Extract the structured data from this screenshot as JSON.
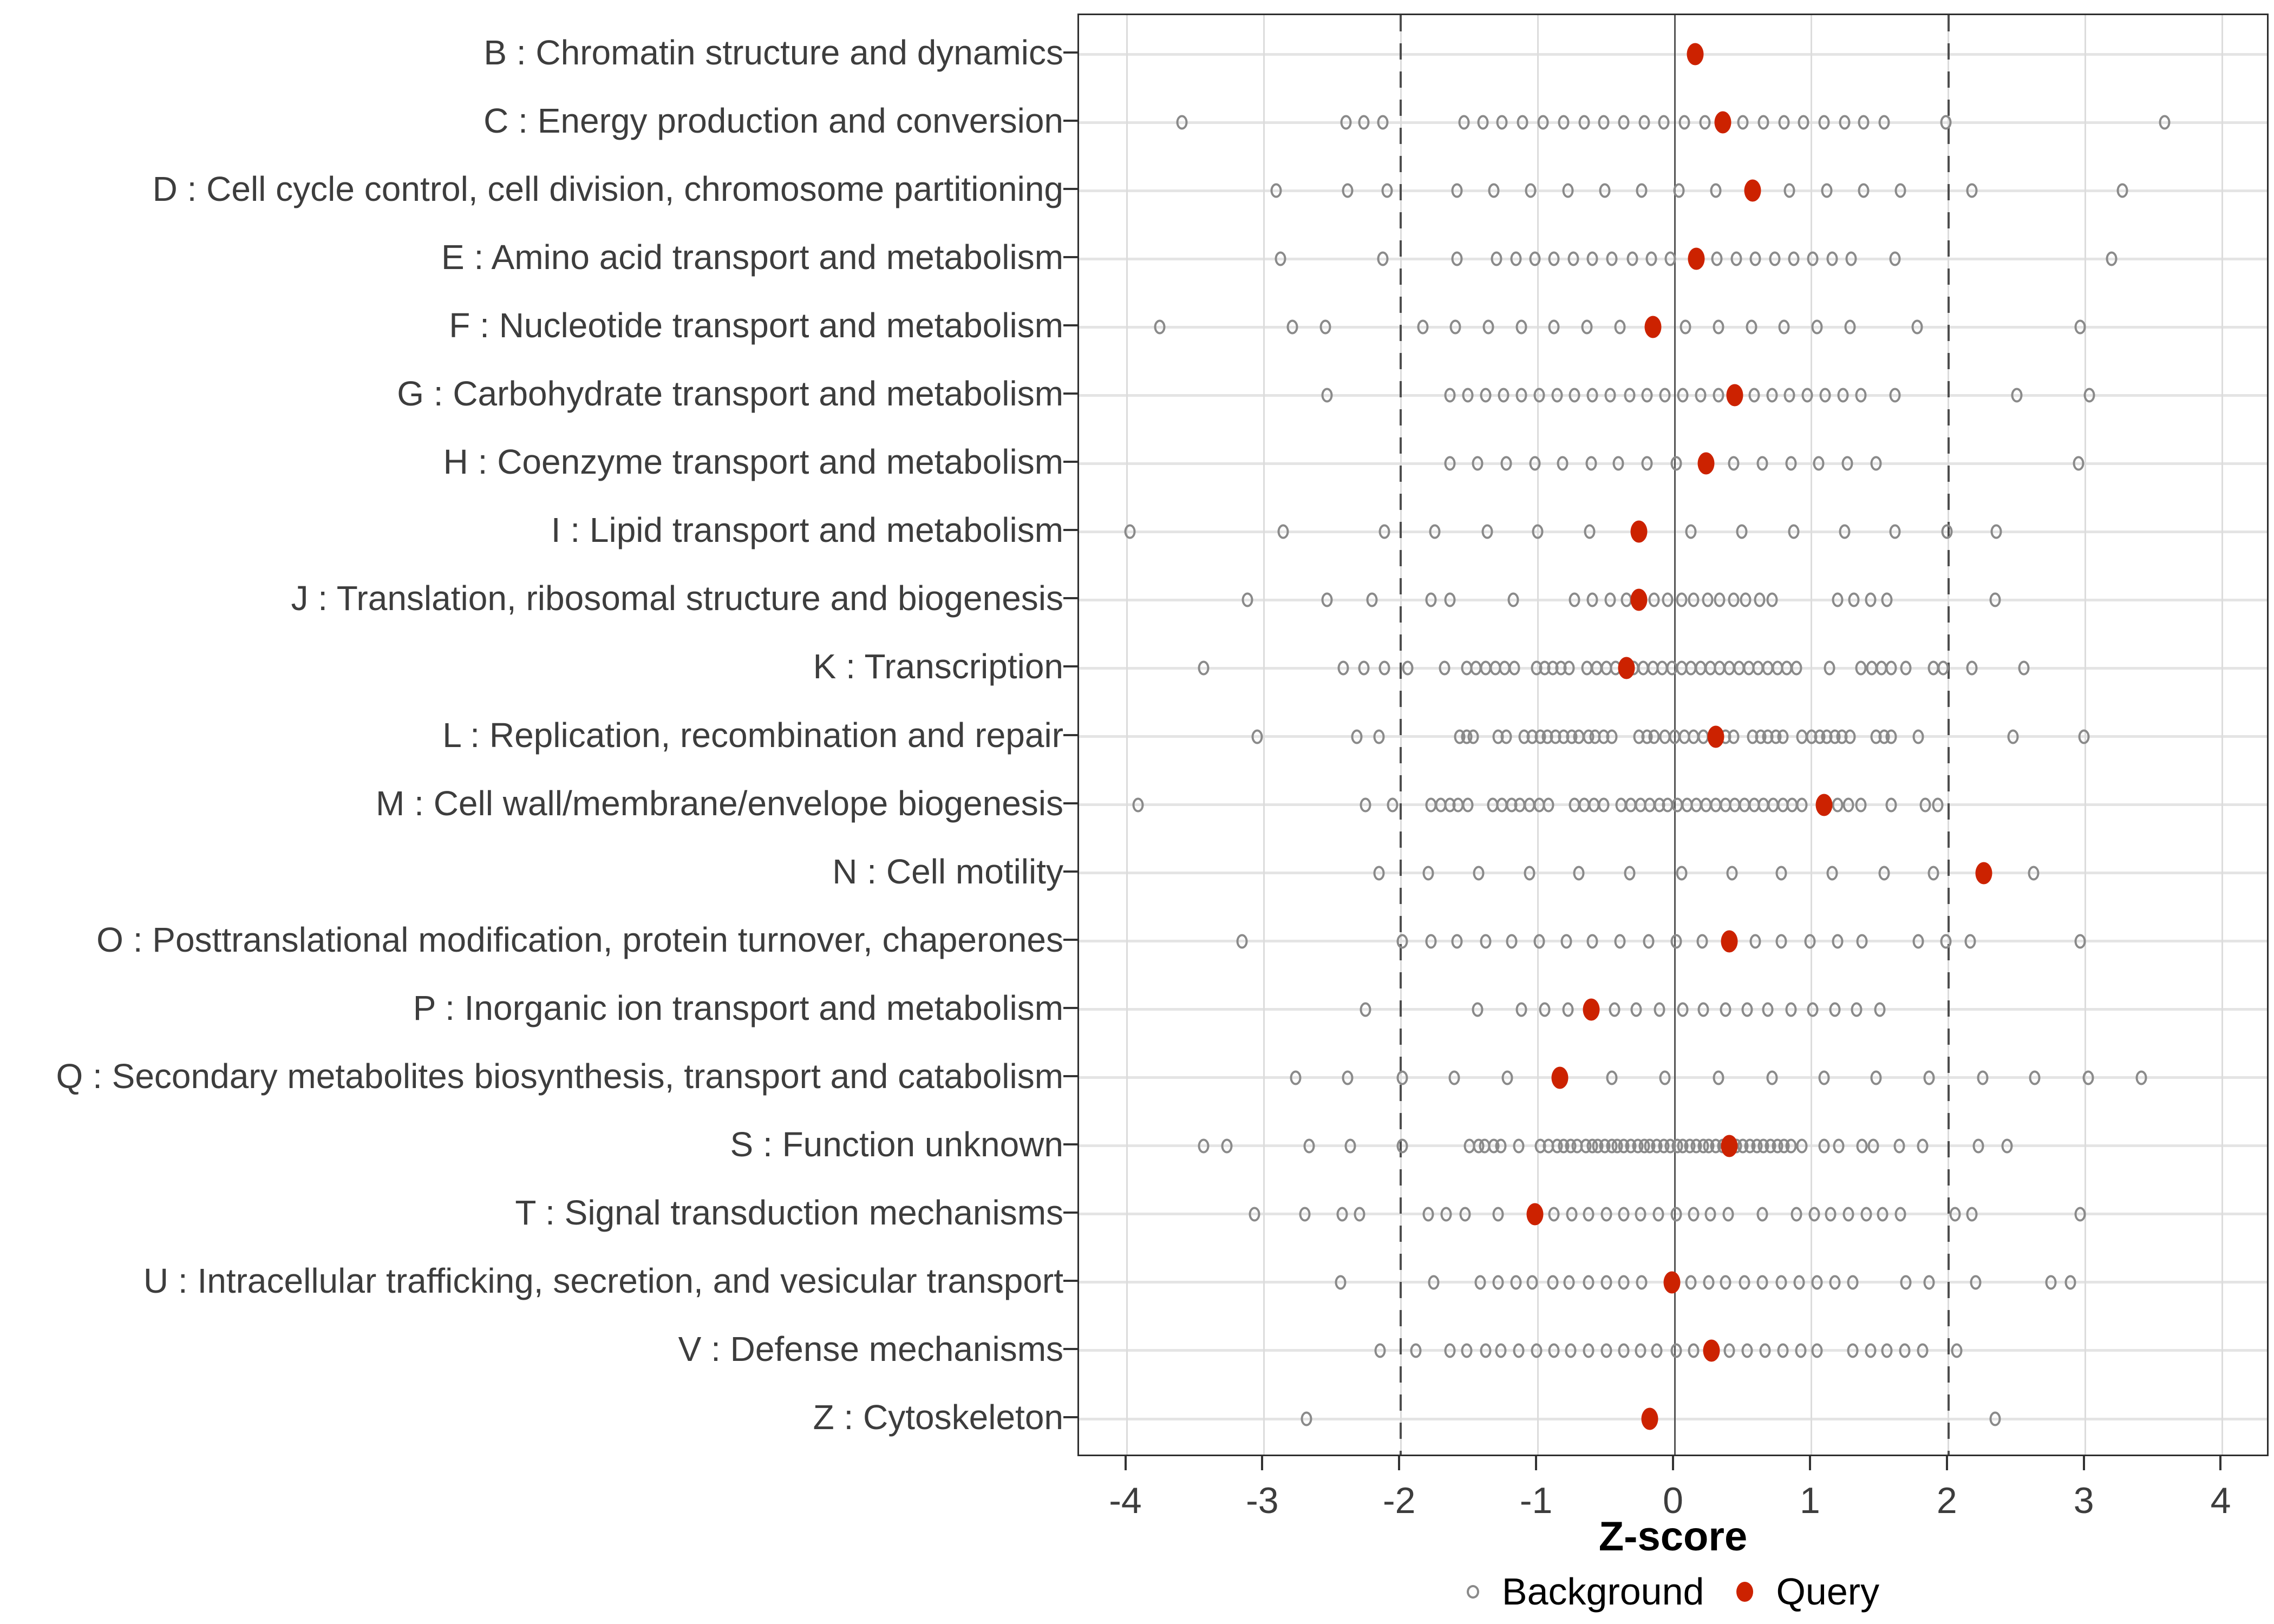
{
  "figure": {
    "xlabel": "Z-score",
    "colors": {
      "query": "#CC2200",
      "background_stroke": "#8A8A8A",
      "grid_major": "#DCDCDC",
      "row_line": "#E4E4E4",
      "reference_line": "#4D4D4D",
      "panel_border": "#2E2E2E",
      "axis_text": "#3D3D3D"
    }
  },
  "chart_data": {
    "type": "scatter",
    "title": "",
    "xlabel": "Z-score",
    "ylabel": "",
    "xlim": [
      -4.35,
      4.35
    ],
    "x_ticks": [
      -4,
      -3,
      -2,
      -1,
      0,
      1,
      2,
      3,
      4
    ],
    "grid": true,
    "reference_lines": {
      "solid": 0,
      "dashed": [
        -2,
        2
      ]
    },
    "legend_position": "bottom",
    "legend": [
      {
        "name": "Background",
        "marker": "open-circle",
        "color": "#8A8A8A"
      },
      {
        "name": "Query",
        "marker": "filled-circle",
        "color": "#CC2200"
      }
    ],
    "series": [
      {
        "code": "B",
        "label": "B : Chromatin structure and dynamics",
        "query": 0.15,
        "background": []
      },
      {
        "code": "C",
        "label": "C : Energy production and conversion",
        "query": 0.35,
        "background": [
          -3.6,
          -2.4,
          -2.27,
          -2.13,
          -1.54,
          -1.4,
          -1.26,
          -1.11,
          -0.96,
          -0.81,
          -0.66,
          -0.52,
          -0.37,
          -0.22,
          -0.08,
          0.07,
          0.22,
          0.5,
          0.65,
          0.8,
          0.94,
          1.09,
          1.24,
          1.38,
          1.53,
          1.98,
          3.58
        ]
      },
      {
        "code": "D",
        "label": "D : Cell cycle control, cell division, chromosome partitioning",
        "query": 0.57,
        "background": [
          -2.91,
          -2.39,
          -2.1,
          -1.59,
          -1.32,
          -1.05,
          -0.78,
          -0.51,
          -0.24,
          0.03,
          0.3,
          0.84,
          1.11,
          1.38,
          1.65,
          2.17,
          3.27
        ]
      },
      {
        "code": "E",
        "label": "E : Amino acid transport and metabolism",
        "query": 0.16,
        "background": [
          -2.88,
          -2.13,
          -1.59,
          -1.3,
          -1.16,
          -1.02,
          -0.88,
          -0.74,
          -0.6,
          -0.46,
          -0.31,
          -0.17,
          -0.03,
          0.31,
          0.45,
          0.59,
          0.73,
          0.87,
          1.01,
          1.15,
          1.29,
          1.61,
          3.19
        ]
      },
      {
        "code": "F",
        "label": "F : Nucleotide transport and metabolism",
        "query": -0.16,
        "background": [
          -3.76,
          -2.79,
          -2.55,
          -1.84,
          -1.6,
          -1.36,
          -1.12,
          -0.88,
          -0.64,
          -0.4,
          0.08,
          0.32,
          0.56,
          0.8,
          1.04,
          1.28,
          1.77,
          2.96
        ]
      },
      {
        "code": "G",
        "label": "G : Carbohydrate transport and metabolism",
        "query": 0.44,
        "background": [
          -2.54,
          -1.64,
          -1.51,
          -1.38,
          -1.25,
          -1.12,
          -0.99,
          -0.86,
          -0.73,
          -0.6,
          -0.47,
          -0.33,
          -0.2,
          -0.07,
          0.06,
          0.19,
          0.32,
          0.58,
          0.71,
          0.84,
          0.97,
          1.1,
          1.23,
          1.36,
          1.61,
          2.5,
          3.03
        ]
      },
      {
        "code": "H",
        "label": "H : Coenzyme transport and metabolism",
        "query": 0.23,
        "background": [
          -1.64,
          -1.44,
          -1.23,
          -1.02,
          -0.82,
          -0.61,
          -0.41,
          -0.2,
          0.01,
          0.43,
          0.64,
          0.85,
          1.05,
          1.26,
          1.47,
          2.95
        ]
      },
      {
        "code": "I",
        "label": "I : Lipid transport and metabolism",
        "query": -0.26,
        "background": [
          -3.98,
          -2.86,
          -2.12,
          -1.75,
          -1.37,
          -1.0,
          -0.62,
          0.12,
          0.49,
          0.87,
          1.24,
          1.61,
          1.99,
          2.35
        ]
      },
      {
        "code": "J",
        "label": "J : Translation, ribosomal structure and biogenesis",
        "query": -0.26,
        "background": [
          -3.12,
          -2.54,
          -2.21,
          -1.78,
          -1.64,
          -1.18,
          -0.73,
          -0.6,
          -0.47,
          -0.35,
          -0.15,
          -0.05,
          0.05,
          0.14,
          0.24,
          0.33,
          0.43,
          0.52,
          0.62,
          0.71,
          1.19,
          1.31,
          1.43,
          1.55,
          2.34
        ]
      },
      {
        "code": "K",
        "label": "K : Transcription",
        "query": -0.35,
        "background": [
          -3.44,
          -2.42,
          -2.27,
          -2.12,
          -1.95,
          -1.68,
          -1.52,
          -1.45,
          -1.38,
          -1.31,
          -1.24,
          -1.17,
          -1.01,
          -0.95,
          -0.89,
          -0.83,
          -0.77,
          -0.64,
          -0.57,
          -0.5,
          -0.43,
          -0.37,
          -0.3,
          -0.23,
          -0.16,
          -0.09,
          -0.02,
          0.05,
          0.12,
          0.19,
          0.26,
          0.33,
          0.4,
          0.47,
          0.54,
          0.61,
          0.68,
          0.75,
          0.82,
          0.89,
          1.13,
          1.36,
          1.44,
          1.51,
          1.58,
          1.69,
          1.89,
          1.96,
          2.17,
          2.55
        ]
      },
      {
        "code": "L",
        "label": "L : Replication, recombination and repair",
        "query": 0.3,
        "background": [
          -3.05,
          -2.32,
          -2.16,
          -1.57,
          -1.52,
          -1.47,
          -1.29,
          -1.23,
          -1.1,
          -1.04,
          -0.98,
          -0.93,
          -0.87,
          -0.81,
          -0.75,
          -0.7,
          -0.63,
          -0.58,
          -0.52,
          -0.46,
          -0.26,
          -0.2,
          -0.15,
          -0.07,
          0.0,
          0.07,
          0.14,
          0.21,
          0.37,
          0.43,
          0.57,
          0.63,
          0.68,
          0.74,
          0.79,
          0.93,
          1.0,
          1.06,
          1.11,
          1.17,
          1.22,
          1.28,
          1.47,
          1.53,
          1.58,
          1.78,
          2.47,
          2.99
        ]
      },
      {
        "code": "M",
        "label": "M : Cell wall/membrane/envelope biogenesis",
        "query": 1.09,
        "background": [
          -3.92,
          -2.26,
          -2.06,
          -1.78,
          -1.71,
          -1.64,
          -1.58,
          -1.51,
          -1.33,
          -1.26,
          -1.19,
          -1.13,
          -1.06,
          -0.99,
          -0.92,
          -0.73,
          -0.66,
          -0.59,
          -0.52,
          -0.39,
          -0.32,
          -0.25,
          -0.18,
          -0.11,
          -0.05,
          0.02,
          0.09,
          0.16,
          0.23,
          0.3,
          0.37,
          0.44,
          0.51,
          0.58,
          0.65,
          0.72,
          0.79,
          0.86,
          0.93,
          1.19,
          1.27,
          1.36,
          1.58,
          1.83,
          1.92
        ]
      },
      {
        "code": "N",
        "label": "N : Cell motility",
        "query": 2.26,
        "background": [
          -2.16,
          -1.8,
          -1.43,
          -1.06,
          -0.7,
          -0.33,
          0.05,
          0.42,
          0.78,
          1.15,
          1.53,
          1.89,
          2.62
        ]
      },
      {
        "code": "O",
        "label": "O : Posttranslational modification, protein turnover, chaperones",
        "query": 0.4,
        "background": [
          -3.16,
          -1.99,
          -1.78,
          -1.59,
          -1.38,
          -1.19,
          -0.99,
          -0.79,
          -0.6,
          -0.4,
          -0.19,
          0.01,
          0.2,
          0.59,
          0.78,
          0.99,
          1.19,
          1.37,
          1.78,
          1.98,
          2.16,
          2.96
        ]
      },
      {
        "code": "P",
        "label": "P : Inorganic ion transport and metabolism",
        "query": -0.61,
        "background": [
          -2.26,
          -1.44,
          -1.12,
          -0.95,
          -0.78,
          -0.44,
          -0.28,
          -0.11,
          0.06,
          0.21,
          0.37,
          0.53,
          0.68,
          0.85,
          1.01,
          1.17,
          1.33,
          1.5
        ]
      },
      {
        "code": "Q",
        "label": "Q : Secondary metabolites biosynthesis, transport and catabolism",
        "query": -0.84,
        "background": [
          -2.77,
          -2.39,
          -1.99,
          -1.61,
          -1.22,
          -0.46,
          -0.07,
          0.32,
          0.71,
          1.09,
          1.47,
          1.86,
          2.25,
          2.63,
          3.02,
          3.41
        ]
      },
      {
        "code": "S",
        "label": "S : Function unknown",
        "query": 0.4,
        "background": [
          -3.44,
          -3.27,
          -2.67,
          -2.37,
          -1.99,
          -1.5,
          -1.43,
          -1.39,
          -1.32,
          -1.27,
          -1.14,
          -0.98,
          -0.92,
          -0.86,
          -0.81,
          -0.76,
          -0.71,
          -0.65,
          -0.6,
          -0.56,
          -0.51,
          -0.46,
          -0.42,
          -0.37,
          -0.32,
          -0.27,
          -0.22,
          -0.18,
          -0.13,
          -0.08,
          -0.03,
          0.02,
          0.06,
          0.11,
          0.16,
          0.21,
          0.25,
          0.3,
          0.35,
          0.45,
          0.5,
          0.55,
          0.6,
          0.65,
          0.7,
          0.75,
          0.8,
          0.85,
          0.93,
          1.09,
          1.2,
          1.37,
          1.45,
          1.64,
          1.81,
          2.22,
          2.43
        ]
      },
      {
        "code": "T",
        "label": "T : Signal transduction mechanisms",
        "query": -1.02,
        "background": [
          -3.07,
          -2.7,
          -2.43,
          -2.3,
          -1.8,
          -1.67,
          -1.53,
          -1.29,
          -0.88,
          -0.75,
          -0.63,
          -0.5,
          -0.37,
          -0.25,
          -0.12,
          0.01,
          0.14,
          0.26,
          0.39,
          0.64,
          0.89,
          1.02,
          1.14,
          1.27,
          1.4,
          1.52,
          1.65,
          2.05,
          2.17,
          2.96
        ]
      },
      {
        "code": "U",
        "label": "U : Intracellular trafficking, secretion, and vesicular transport",
        "query": -0.02,
        "background": [
          -2.44,
          -1.76,
          -1.42,
          -1.29,
          -1.16,
          -1.04,
          -0.89,
          -0.77,
          -0.63,
          -0.5,
          -0.37,
          -0.24,
          0.12,
          0.25,
          0.37,
          0.51,
          0.64,
          0.78,
          0.91,
          1.04,
          1.17,
          1.3,
          1.69,
          1.86,
          2.2,
          2.75,
          2.89
        ]
      },
      {
        "code": "V",
        "label": "V : Defense mechanisms",
        "query": 0.27,
        "background": [
          -2.15,
          -1.89,
          -1.64,
          -1.52,
          -1.38,
          -1.27,
          -1.14,
          -1.01,
          -0.88,
          -0.76,
          -0.63,
          -0.5,
          -0.37,
          -0.25,
          -0.13,
          0.01,
          0.14,
          0.4,
          0.53,
          0.66,
          0.79,
          0.92,
          1.04,
          1.3,
          1.43,
          1.55,
          1.68,
          1.81,
          2.06
        ]
      },
      {
        "code": "Z",
        "label": "Z : Cytoskeleton",
        "query": -0.18,
        "background": [
          -2.69,
          2.34
        ]
      }
    ]
  }
}
